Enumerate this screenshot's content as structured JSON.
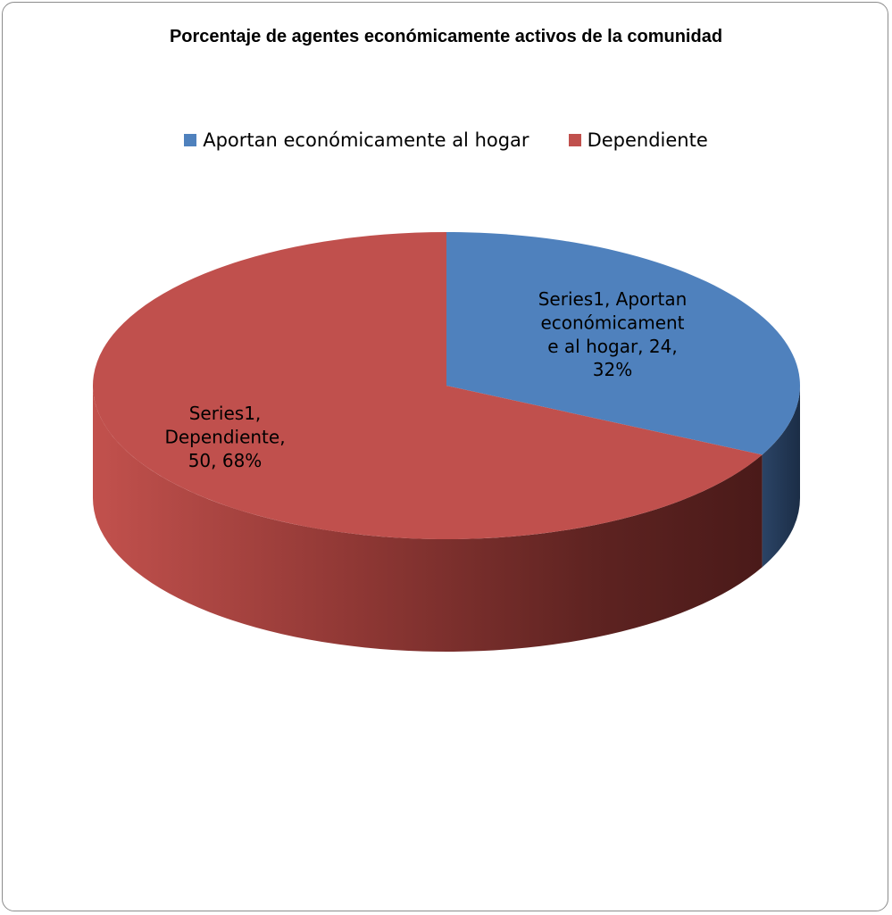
{
  "chart_data": {
    "type": "pie",
    "title": "Porcentaje de agentes económicamente activos  de la comunidad",
    "categories": [
      "Aportan económicamente al hogar",
      "Dependiente"
    ],
    "series": [
      {
        "name": "Series1",
        "values": [
          24,
          50
        ]
      }
    ],
    "percentages": [
      "32%",
      "68%"
    ],
    "colors": [
      "#4f81bd",
      "#c0504d"
    ],
    "data_labels": [
      [
        "Series1, Aportan",
        "económicament",
        "e al hogar, 24,",
        "32%"
      ],
      [
        "Series1,",
        "Dependiente,",
        "50, 68%"
      ]
    ],
    "legend_position": "top",
    "style": "3d"
  }
}
